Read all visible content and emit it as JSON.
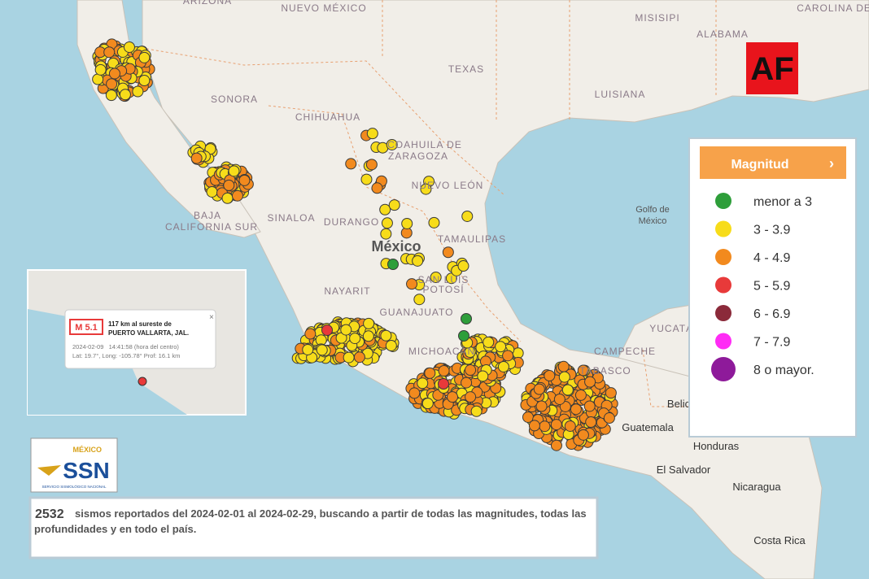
{
  "map": {
    "labels": [
      "ARIZONA",
      "NUEVO MÉXICO",
      "MISISIPI",
      "ALABAMA",
      "CAROLINA DEL SUR",
      "TEXAS",
      "LUISIANA",
      "SONORA",
      "CHIHUAHUA",
      "COAHUILA DE",
      "ZARAGOZA",
      "NUEVO LEÓN",
      "BAJA",
      "CALIFORNIA SUR",
      "SINALOA",
      "DURANGO",
      "TAMAULIPAS",
      "México",
      "NAYARIT",
      "SAN LUIS",
      "POTOSÍ",
      "GUANAJUATO",
      "MICHOACÁN",
      "YUCATÁN",
      "CAMPECHE",
      "TABASCO",
      "Golfo de",
      "México",
      "Belic",
      "Guatemala",
      "Honduras",
      "El Salvador",
      "Nicaragua",
      "Costa Rica"
    ]
  },
  "brand": {
    "logo": "AF"
  },
  "legend": {
    "title": "Magnitud",
    "items": [
      {
        "label": "menor a 3",
        "color": "#2e9e3a"
      },
      {
        "label": "3 - 3.9",
        "color": "#f7dc1a"
      },
      {
        "label": "4 - 4.9",
        "color": "#f28a1e"
      },
      {
        "label": "5 - 5.9",
        "color": "#e83a3a"
      },
      {
        "label": "6 - 6.9",
        "color": "#8b2a3a"
      },
      {
        "label": "7 - 7.9",
        "color": "#ff2cf5"
      },
      {
        "label": "8 o mayor.",
        "color": "#8e1a9a"
      }
    ]
  },
  "popup": {
    "magnitude": "M 5.1",
    "line1": "117 km al sureste de",
    "line2": "PUERTO VALLARTA, JAL.",
    "date": "2024-02-09   14:41:58 (hora del centro)",
    "coords": "Lat: 19.7°, Long: -105.78° Prof: 16.1 km"
  },
  "ssn": {
    "country": "MÉXICO",
    "name": "SSN",
    "full": "SERVICIO SISMOLÓGICO NACIONAL"
  },
  "summary": {
    "count": "2532",
    "text": "sismos reportados del 2024-02-01 al 2024-02-29, buscando a partir de todas las magnitudes, todas las profundidades y en todo el país."
  }
}
